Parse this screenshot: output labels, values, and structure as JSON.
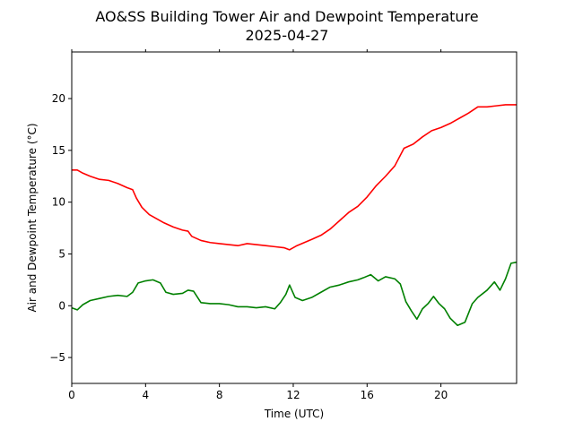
{
  "chart_data": {
    "type": "line",
    "title": "AO&SS Building Tower Air and Dewpoint Temperature",
    "subtitle": "2025-04-27",
    "xlabel": "Time (UTC)",
    "ylabel": "Air and Dewpoint Temperature (°C)",
    "xlim": [
      0,
      24.1
    ],
    "ylim": [
      -7.5,
      24.5
    ],
    "xticks": [
      0,
      4,
      8,
      12,
      16,
      20
    ],
    "yticks": [
      -5,
      0,
      5,
      10,
      15,
      20
    ],
    "grid": false,
    "series": [
      {
        "color": "#ff0000",
        "x": [
          0,
          0.3,
          0.6,
          1.0,
          1.5,
          2.0,
          2.5,
          3.0,
          3.3,
          3.5,
          3.8,
          4.2,
          4.6,
          5.0,
          5.5,
          6.0,
          6.3,
          6.5,
          7.0,
          7.5,
          8.0,
          8.5,
          9.0,
          9.5,
          10.0,
          10.5,
          11.0,
          11.5,
          11.8,
          12.2,
          12.6,
          13.0,
          13.5,
          14.0,
          14.5,
          15.0,
          15.5,
          16.0,
          16.5,
          17.0,
          17.5,
          18.0,
          18.5,
          19.0,
          19.5,
          20.0,
          20.5,
          21.0,
          21.5,
          22.0,
          22.5,
          23.0,
          23.5,
          24.1
        ],
        "y": [
          13.1,
          13.1,
          12.8,
          12.5,
          12.2,
          12.1,
          11.8,
          11.4,
          11.2,
          10.4,
          9.5,
          8.8,
          8.4,
          8.0,
          7.6,
          7.3,
          7.2,
          6.7,
          6.3,
          6.1,
          6.0,
          5.9,
          5.8,
          6.0,
          5.9,
          5.8,
          5.7,
          5.6,
          5.4,
          5.8,
          6.1,
          6.4,
          6.8,
          7.4,
          8.2,
          9.0,
          9.6,
          10.5,
          11.6,
          12.5,
          13.5,
          15.2,
          15.6,
          16.3,
          16.9,
          17.2,
          17.6,
          18.1,
          18.6,
          19.2,
          19.2,
          19.3,
          19.4,
          19.4
        ]
      },
      {
        "color": "#008000",
        "x": [
          0,
          0.3,
          0.6,
          1.0,
          1.5,
          2.0,
          2.5,
          3.0,
          3.3,
          3.6,
          4.0,
          4.4,
          4.8,
          5.1,
          5.5,
          6.0,
          6.3,
          6.6,
          7.0,
          7.5,
          8.0,
          8.5,
          9.0,
          9.5,
          10.0,
          10.5,
          11.0,
          11.3,
          11.6,
          11.8,
          12.1,
          12.5,
          13.0,
          13.5,
          14.0,
          14.5,
          15.0,
          15.5,
          15.8,
          16.2,
          16.6,
          17.0,
          17.5,
          17.8,
          18.1,
          18.4,
          18.7,
          19.0,
          19.3,
          19.6,
          19.9,
          20.2,
          20.5,
          20.9,
          21.3,
          21.7,
          22.0,
          22.5,
          22.9,
          23.2,
          23.5,
          23.8,
          24.1
        ],
        "y": [
          -0.2,
          -0.4,
          0.1,
          0.5,
          0.7,
          0.9,
          1.0,
          0.9,
          1.3,
          2.2,
          2.4,
          2.5,
          2.2,
          1.3,
          1.1,
          1.2,
          1.5,
          1.4,
          0.3,
          0.2,
          0.2,
          0.1,
          -0.1,
          -0.1,
          -0.2,
          -0.1,
          -0.3,
          0.3,
          1.1,
          2.0,
          0.8,
          0.5,
          0.8,
          1.3,
          1.8,
          2.0,
          2.3,
          2.5,
          2.7,
          3.0,
          2.4,
          2.8,
          2.6,
          2.1,
          0.4,
          -0.5,
          -1.3,
          -0.3,
          0.2,
          0.9,
          0.2,
          -0.3,
          -1.2,
          -1.9,
          -1.6,
          0.2,
          0.8,
          1.5,
          2.3,
          1.5,
          2.6,
          4.1,
          4.2
        ]
      }
    ]
  }
}
